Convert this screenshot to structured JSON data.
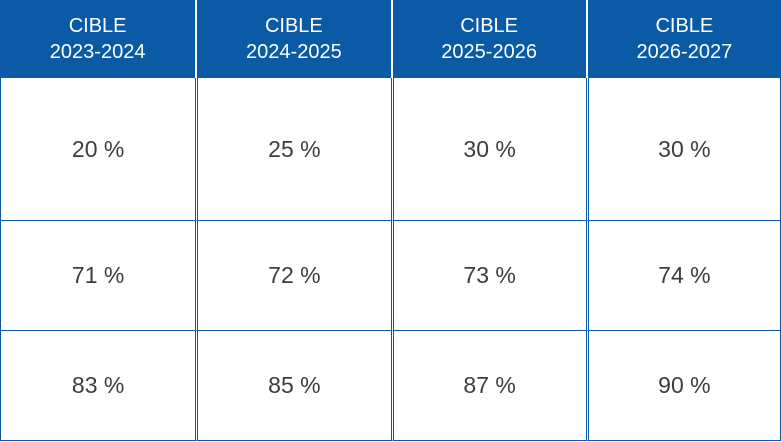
{
  "colors": {
    "header_bg": "#0b5aa6",
    "header_text": "#ffffff",
    "cell_text": "#3d3d3d",
    "border": "#0b5aa6"
  },
  "table": {
    "headers": [
      {
        "line1": "CIBLE",
        "line2": "2023-2024"
      },
      {
        "line1": "CIBLE",
        "line2": "2024-2025"
      },
      {
        "line1": "CIBLE",
        "line2": "2025-2026"
      },
      {
        "line1": "CIBLE",
        "line2": "2026-2027"
      }
    ],
    "rows": [
      [
        "20 %",
        "25 %",
        "30 %",
        "30 %"
      ],
      [
        "71 %",
        "72 %",
        "73 %",
        "74 %"
      ],
      [
        "83 %",
        "85 %",
        "87 %",
        "90 %"
      ]
    ]
  }
}
